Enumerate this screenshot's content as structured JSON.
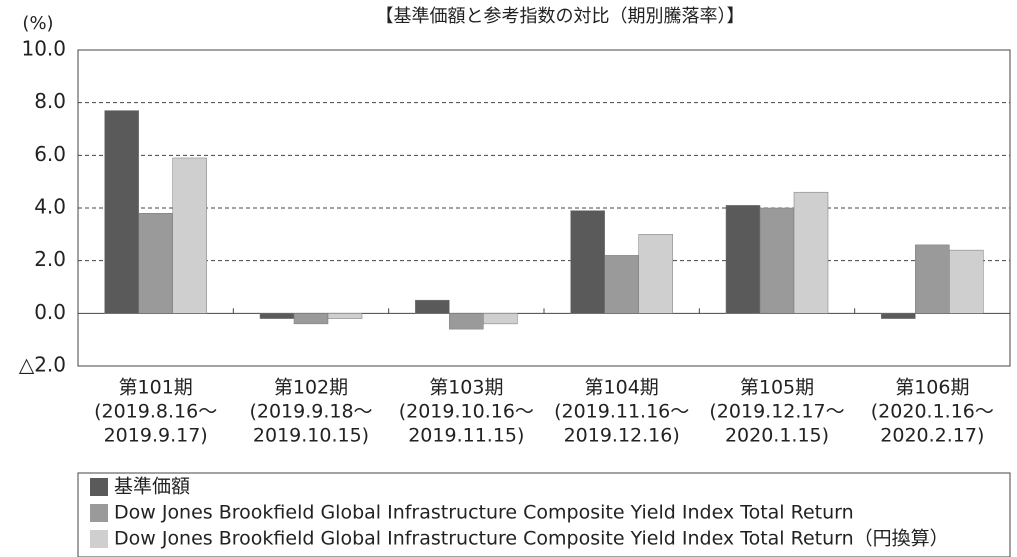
{
  "chart_data": {
    "type": "bar",
    "title": "【基準価額と参考指数の対比（期別騰落率）】",
    "y_label": "(%)",
    "categories": [
      [
        "第101期",
        "(2019.8.16～",
        "2019.9.17)"
      ],
      [
        "第102期",
        "(2019.9.18～",
        "2019.10.15)"
      ],
      [
        "第103期",
        "(2019.10.16～",
        "2019.11.15)"
      ],
      [
        "第104期",
        "(2019.11.16～",
        "2019.12.16)"
      ],
      [
        "第105期",
        "(2019.12.17～",
        "2020.1.15)"
      ],
      [
        "第106期",
        "(2020.1.16～",
        "2020.2.17)"
      ]
    ],
    "series": [
      {
        "name": "基準価額",
        "color": "#5a5a5a",
        "values": [
          7.7,
          -0.2,
          0.5,
          3.9,
          4.1,
          -0.2
        ]
      },
      {
        "name": "Dow Jones Brookfield Global Infrastructure Composite Yield Index Total Return",
        "color": "#9a9a9a",
        "values": [
          3.8,
          -0.4,
          -0.6,
          2.2,
          4.0,
          2.6
        ]
      },
      {
        "name": "Dow Jones Brookfield Global Infrastructure Composite Yield Index Total Return（円換算）",
        "color": "#cfcfcf",
        "values": [
          5.9,
          -0.2,
          -0.4,
          3.0,
          4.6,
          2.4
        ]
      }
    ],
    "ylim": [
      -2,
      10
    ],
    "yticks": [
      {
        "value": -2,
        "label": "△2.0"
      },
      {
        "value": 0,
        "label": "0.0"
      },
      {
        "value": 2,
        "label": "2.0"
      },
      {
        "value": 4,
        "label": "4.0"
      },
      {
        "value": 6,
        "label": "6.0"
      },
      {
        "value": 8,
        "label": "8.0"
      },
      {
        "value": 10,
        "label": "10.0"
      }
    ],
    "grid": true
  }
}
